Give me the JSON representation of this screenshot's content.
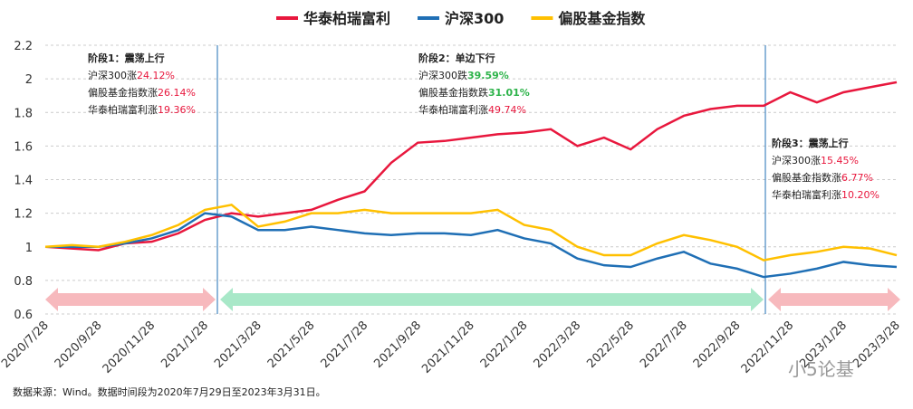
{
  "chart_data": {
    "type": "line",
    "x": [
      "2020/7/28",
      "2020/8/28",
      "2020/9/28",
      "2020/10/28",
      "2020/11/28",
      "2020/12/28",
      "2021/1/28",
      "2021/2/28",
      "2021/3/28",
      "2021/4/28",
      "2021/5/28",
      "2021/6/28",
      "2021/7/28",
      "2021/8/28",
      "2021/9/28",
      "2021/10/28",
      "2021/11/28",
      "2021/12/28",
      "2022/1/28",
      "2022/2/28",
      "2022/3/28",
      "2022/4/28",
      "2022/5/28",
      "2022/6/28",
      "2022/7/28",
      "2022/8/28",
      "2022/9/28",
      "2022/10/28",
      "2022/11/28",
      "2022/12/28",
      "2023/1/28",
      "2023/2/28",
      "2023/3/28"
    ],
    "series": [
      {
        "name": "华泰柏瑞富利",
        "color": "#e8173d",
        "values": [
          1.0,
          0.99,
          0.98,
          1.02,
          1.03,
          1.08,
          1.16,
          1.2,
          1.18,
          1.2,
          1.22,
          1.28,
          1.33,
          1.5,
          1.62,
          1.63,
          1.65,
          1.67,
          1.68,
          1.7,
          1.6,
          1.65,
          1.58,
          1.7,
          1.78,
          1.82,
          1.84,
          1.84,
          1.92,
          1.86,
          1.92,
          1.95,
          1.98
        ]
      },
      {
        "name": "沪深300",
        "color": "#1f6fb5",
        "values": [
          1.0,
          1.0,
          1.0,
          1.02,
          1.05,
          1.1,
          1.2,
          1.18,
          1.1,
          1.1,
          1.12,
          1.1,
          1.08,
          1.07,
          1.08,
          1.08,
          1.07,
          1.1,
          1.05,
          1.02,
          0.93,
          0.89,
          0.88,
          0.93,
          0.97,
          0.9,
          0.87,
          0.82,
          0.84,
          0.87,
          0.91,
          0.89,
          0.88
        ]
      },
      {
        "name": "偏股基金指数",
        "color": "#ffc000",
        "values": [
          1.0,
          1.01,
          1.0,
          1.03,
          1.07,
          1.13,
          1.22,
          1.25,
          1.12,
          1.15,
          1.2,
          1.2,
          1.22,
          1.2,
          1.2,
          1.2,
          1.2,
          1.22,
          1.13,
          1.1,
          1.0,
          0.95,
          0.95,
          1.02,
          1.07,
          1.04,
          1.0,
          0.92,
          0.95,
          0.97,
          1.0,
          0.99,
          0.95
        ]
      }
    ],
    "ylim": [
      0.6,
      2.2
    ],
    "yticks": [
      0.6,
      0.8,
      1,
      1.2,
      1.4,
      1.6,
      1.8,
      2,
      2.2
    ],
    "grid": true,
    "annotations": [
      {
        "title": "阶段1：震荡上行",
        "lines": [
          {
            "label": "沪深300涨",
            "value": "24.12%",
            "color": "#e8173d"
          },
          {
            "label": "偏股基金指数涨",
            "value": "26.14%",
            "color": "#e8173d"
          },
          {
            "label": "华泰柏瑞富利涨",
            "value": "19.36%",
            "color": "#e8173d"
          }
        ]
      },
      {
        "title": "阶段2：单边下行",
        "lines": [
          {
            "label": "沪深300跌",
            "value": "39.59%",
            "color": "#2db34a"
          },
          {
            "label": "偏股基金指数跌",
            "value": "31.01%",
            "color": "#2db34a"
          },
          {
            "label": "华泰柏瑞富利涨",
            "value": "49.74%",
            "color": "#e8173d"
          }
        ]
      },
      {
        "title": "阶段3：震荡上行",
        "lines": [
          {
            "label": "沪深300涨",
            "value": "15.45%",
            "color": "#e8173d"
          },
          {
            "label": "偏股基金指数涨",
            "value": "6.77%",
            "color": "#e8173d"
          },
          {
            "label": "华泰柏瑞富利涨",
            "value": "10.20%",
            "color": "#e8173d"
          }
        ]
      }
    ],
    "source": "数据来源：Wind。数据时间段为2020年7月29日至2023年3月31日。",
    "watermark": "小5论基"
  }
}
